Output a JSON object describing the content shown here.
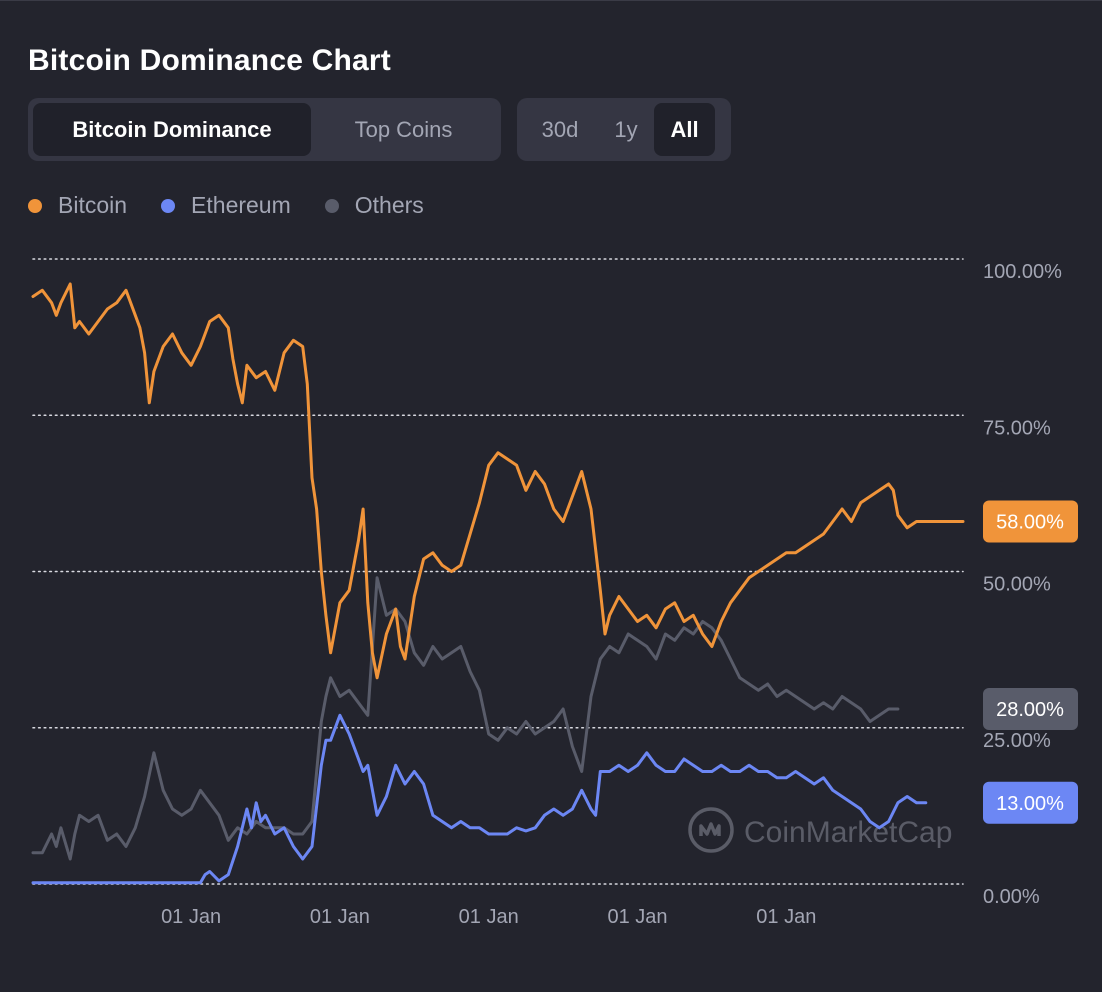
{
  "title": "Bitcoin Dominance Chart",
  "view_tabs": [
    {
      "label": "Bitcoin Dominance",
      "active": true
    },
    {
      "label": "Top Coins",
      "active": false
    }
  ],
  "range_tabs": [
    {
      "label": "30d",
      "active": false
    },
    {
      "label": "1y",
      "active": false
    },
    {
      "label": "All",
      "active": true
    }
  ],
  "watermark": "CoinMarketCap",
  "chart_data": {
    "type": "line",
    "ylim": [
      0,
      100
    ],
    "y_ticks": [
      {
        "value": 100,
        "label": "100.00%"
      },
      {
        "value": 75,
        "label": "75.00%"
      },
      {
        "value": 50,
        "label": "50.00%"
      },
      {
        "value": 25,
        "label": "25.00%"
      },
      {
        "value": 0,
        "label": "0.00%"
      }
    ],
    "x_ticks": [
      {
        "position": 0.17,
        "label": "01 Jan"
      },
      {
        "position": 0.33,
        "label": "01 Jan"
      },
      {
        "position": 0.49,
        "label": "01 Jan"
      },
      {
        "position": 0.65,
        "label": "01 Jan"
      },
      {
        "position": 0.81,
        "label": "01 Jan"
      }
    ],
    "grid": "horizontal-dotted",
    "legend_position": "top-left",
    "series": [
      {
        "name": "Bitcoin",
        "color": "#f0943a",
        "last_label": "58.00%",
        "values": [
          [
            0,
            94
          ],
          [
            0.01,
            95
          ],
          [
            0.02,
            93
          ],
          [
            0.025,
            91
          ],
          [
            0.03,
            93
          ],
          [
            0.04,
            96
          ],
          [
            0.045,
            89
          ],
          [
            0.05,
            90
          ],
          [
            0.06,
            88
          ],
          [
            0.07,
            90
          ],
          [
            0.08,
            92
          ],
          [
            0.09,
            93
          ],
          [
            0.1,
            95
          ],
          [
            0.11,
            91
          ],
          [
            0.115,
            89
          ],
          [
            0.12,
            85
          ],
          [
            0.125,
            77
          ],
          [
            0.13,
            82
          ],
          [
            0.14,
            86
          ],
          [
            0.15,
            88
          ],
          [
            0.16,
            85
          ],
          [
            0.17,
            83
          ],
          [
            0.18,
            86
          ],
          [
            0.19,
            90
          ],
          [
            0.2,
            91
          ],
          [
            0.21,
            89
          ],
          [
            0.215,
            84
          ],
          [
            0.22,
            80
          ],
          [
            0.225,
            77
          ],
          [
            0.23,
            83
          ],
          [
            0.24,
            81
          ],
          [
            0.25,
            82
          ],
          [
            0.26,
            79
          ],
          [
            0.27,
            85
          ],
          [
            0.28,
            87
          ],
          [
            0.29,
            86
          ],
          [
            0.295,
            80
          ],
          [
            0.3,
            65
          ],
          [
            0.305,
            60
          ],
          [
            0.31,
            50
          ],
          [
            0.315,
            43
          ],
          [
            0.32,
            37
          ],
          [
            0.33,
            45
          ],
          [
            0.34,
            47
          ],
          [
            0.35,
            55
          ],
          [
            0.355,
            60
          ],
          [
            0.36,
            45
          ],
          [
            0.365,
            37
          ],
          [
            0.37,
            33
          ],
          [
            0.38,
            40
          ],
          [
            0.39,
            44
          ],
          [
            0.395,
            38
          ],
          [
            0.4,
            36
          ],
          [
            0.41,
            46
          ],
          [
            0.42,
            52
          ],
          [
            0.43,
            53
          ],
          [
            0.44,
            51
          ],
          [
            0.45,
            50
          ],
          [
            0.46,
            51
          ],
          [
            0.47,
            56
          ],
          [
            0.48,
            61
          ],
          [
            0.49,
            67
          ],
          [
            0.5,
            69
          ],
          [
            0.51,
            68
          ],
          [
            0.52,
            67
          ],
          [
            0.53,
            63
          ],
          [
            0.54,
            66
          ],
          [
            0.55,
            64
          ],
          [
            0.56,
            60
          ],
          [
            0.57,
            58
          ],
          [
            0.58,
            62
          ],
          [
            0.59,
            66
          ],
          [
            0.6,
            60
          ],
          [
            0.61,
            47
          ],
          [
            0.615,
            40
          ],
          [
            0.62,
            43
          ],
          [
            0.63,
            46
          ],
          [
            0.64,
            44
          ],
          [
            0.65,
            42
          ],
          [
            0.66,
            43
          ],
          [
            0.67,
            41
          ],
          [
            0.68,
            44
          ],
          [
            0.69,
            45
          ],
          [
            0.7,
            42
          ],
          [
            0.71,
            43
          ],
          [
            0.72,
            40
          ],
          [
            0.73,
            38
          ],
          [
            0.74,
            42
          ],
          [
            0.75,
            45
          ],
          [
            0.76,
            47
          ],
          [
            0.77,
            49
          ],
          [
            0.78,
            50
          ],
          [
            0.79,
            51
          ],
          [
            0.8,
            52
          ],
          [
            0.81,
            53
          ],
          [
            0.82,
            53
          ],
          [
            0.83,
            54
          ],
          [
            0.84,
            55
          ],
          [
            0.85,
            56
          ],
          [
            0.86,
            58
          ],
          [
            0.87,
            60
          ],
          [
            0.88,
            58
          ],
          [
            0.89,
            61
          ],
          [
            0.9,
            62
          ],
          [
            0.91,
            63
          ],
          [
            0.92,
            64
          ],
          [
            0.925,
            63
          ],
          [
            0.93,
            59
          ],
          [
            0.94,
            57
          ],
          [
            0.95,
            58
          ],
          [
            1,
            58
          ]
        ]
      },
      {
        "name": "Ethereum",
        "color": "#6c87f4",
        "last_label": "13.00%",
        "values": [
          [
            0,
            0.2
          ],
          [
            0.18,
            0.2
          ],
          [
            0.185,
            1.5
          ],
          [
            0.19,
            2
          ],
          [
            0.2,
            0.5
          ],
          [
            0.21,
            1.5
          ],
          [
            0.22,
            6
          ],
          [
            0.23,
            12
          ],
          [
            0.235,
            9
          ],
          [
            0.24,
            13
          ],
          [
            0.245,
            10
          ],
          [
            0.25,
            11
          ],
          [
            0.26,
            8
          ],
          [
            0.27,
            9
          ],
          [
            0.28,
            6
          ],
          [
            0.29,
            4
          ],
          [
            0.3,
            6
          ],
          [
            0.31,
            19
          ],
          [
            0.315,
            23
          ],
          [
            0.32,
            23
          ],
          [
            0.33,
            27
          ],
          [
            0.34,
            24
          ],
          [
            0.35,
            20
          ],
          [
            0.355,
            18
          ],
          [
            0.36,
            19
          ],
          [
            0.37,
            11
          ],
          [
            0.38,
            14
          ],
          [
            0.39,
            19
          ],
          [
            0.4,
            16
          ],
          [
            0.41,
            18
          ],
          [
            0.42,
            16
          ],
          [
            0.43,
            11
          ],
          [
            0.44,
            10
          ],
          [
            0.45,
            9
          ],
          [
            0.46,
            10
          ],
          [
            0.47,
            9
          ],
          [
            0.48,
            9
          ],
          [
            0.49,
            8
          ],
          [
            0.5,
            8
          ],
          [
            0.51,
            8
          ],
          [
            0.52,
            9
          ],
          [
            0.53,
            8.5
          ],
          [
            0.54,
            9
          ],
          [
            0.55,
            11
          ],
          [
            0.56,
            12
          ],
          [
            0.57,
            11
          ],
          [
            0.58,
            12
          ],
          [
            0.59,
            15
          ],
          [
            0.6,
            12
          ],
          [
            0.605,
            11
          ],
          [
            0.61,
            18
          ],
          [
            0.62,
            18
          ],
          [
            0.63,
            19
          ],
          [
            0.64,
            18
          ],
          [
            0.65,
            19
          ],
          [
            0.66,
            21
          ],
          [
            0.67,
            19
          ],
          [
            0.68,
            18
          ],
          [
            0.69,
            18
          ],
          [
            0.7,
            20
          ],
          [
            0.71,
            19
          ],
          [
            0.72,
            18
          ],
          [
            0.73,
            18
          ],
          [
            0.74,
            19
          ],
          [
            0.75,
            18
          ],
          [
            0.76,
            18
          ],
          [
            0.77,
            19
          ],
          [
            0.78,
            18
          ],
          [
            0.79,
            18
          ],
          [
            0.8,
            17
          ],
          [
            0.81,
            17
          ],
          [
            0.82,
            18
          ],
          [
            0.83,
            17
          ],
          [
            0.84,
            16
          ],
          [
            0.85,
            17
          ],
          [
            0.86,
            15
          ],
          [
            0.87,
            14
          ],
          [
            0.88,
            13
          ],
          [
            0.89,
            12
          ],
          [
            0.9,
            10
          ],
          [
            0.91,
            9
          ],
          [
            0.92,
            10
          ],
          [
            0.93,
            13
          ],
          [
            0.94,
            14
          ],
          [
            0.95,
            13
          ],
          [
            0.96,
            13
          ]
        ]
      },
      {
        "name": "Others",
        "color": "#595c6a",
        "last_label": "28.00%",
        "values": [
          [
            0,
            5
          ],
          [
            0.01,
            5
          ],
          [
            0.02,
            8
          ],
          [
            0.025,
            6
          ],
          [
            0.03,
            9
          ],
          [
            0.04,
            4
          ],
          [
            0.045,
            8
          ],
          [
            0.05,
            11
          ],
          [
            0.06,
            10
          ],
          [
            0.07,
            11
          ],
          [
            0.08,
            7
          ],
          [
            0.09,
            8
          ],
          [
            0.1,
            6
          ],
          [
            0.11,
            9
          ],
          [
            0.12,
            14
          ],
          [
            0.13,
            21
          ],
          [
            0.14,
            15
          ],
          [
            0.15,
            12
          ],
          [
            0.16,
            11
          ],
          [
            0.17,
            12
          ],
          [
            0.18,
            15
          ],
          [
            0.19,
            13
          ],
          [
            0.2,
            11
          ],
          [
            0.21,
            7
          ],
          [
            0.22,
            9
          ],
          [
            0.23,
            8
          ],
          [
            0.24,
            10
          ],
          [
            0.25,
            9
          ],
          [
            0.26,
            9
          ],
          [
            0.27,
            9
          ],
          [
            0.28,
            8
          ],
          [
            0.29,
            8
          ],
          [
            0.3,
            10
          ],
          [
            0.31,
            26
          ],
          [
            0.315,
            30
          ],
          [
            0.32,
            33
          ],
          [
            0.33,
            30
          ],
          [
            0.34,
            31
          ],
          [
            0.35,
            29
          ],
          [
            0.36,
            27
          ],
          [
            0.37,
            49
          ],
          [
            0.38,
            43
          ],
          [
            0.39,
            44
          ],
          [
            0.4,
            42
          ],
          [
            0.41,
            37
          ],
          [
            0.42,
            35
          ],
          [
            0.43,
            38
          ],
          [
            0.44,
            36
          ],
          [
            0.45,
            37
          ],
          [
            0.46,
            38
          ],
          [
            0.47,
            34
          ],
          [
            0.48,
            31
          ],
          [
            0.49,
            24
          ],
          [
            0.5,
            23
          ],
          [
            0.51,
            25
          ],
          [
            0.52,
            24
          ],
          [
            0.53,
            26
          ],
          [
            0.54,
            24
          ],
          [
            0.55,
            25
          ],
          [
            0.56,
            26
          ],
          [
            0.57,
            28
          ],
          [
            0.58,
            22
          ],
          [
            0.59,
            18
          ],
          [
            0.6,
            30
          ],
          [
            0.61,
            36
          ],
          [
            0.62,
            38
          ],
          [
            0.63,
            37
          ],
          [
            0.64,
            40
          ],
          [
            0.65,
            39
          ],
          [
            0.66,
            38
          ],
          [
            0.67,
            36
          ],
          [
            0.68,
            40
          ],
          [
            0.69,
            39
          ],
          [
            0.7,
            41
          ],
          [
            0.71,
            40
          ],
          [
            0.72,
            42
          ],
          [
            0.73,
            41
          ],
          [
            0.74,
            39
          ],
          [
            0.75,
            36
          ],
          [
            0.76,
            33
          ],
          [
            0.77,
            32
          ],
          [
            0.78,
            31
          ],
          [
            0.79,
            32
          ],
          [
            0.8,
            30
          ],
          [
            0.81,
            31
          ],
          [
            0.82,
            30
          ],
          [
            0.83,
            29
          ],
          [
            0.84,
            28
          ],
          [
            0.85,
            29
          ],
          [
            0.86,
            28
          ],
          [
            0.87,
            30
          ],
          [
            0.88,
            29
          ],
          [
            0.89,
            28
          ],
          [
            0.9,
            26
          ],
          [
            0.91,
            27
          ],
          [
            0.92,
            28
          ],
          [
            0.93,
            28
          ]
        ]
      }
    ]
  }
}
